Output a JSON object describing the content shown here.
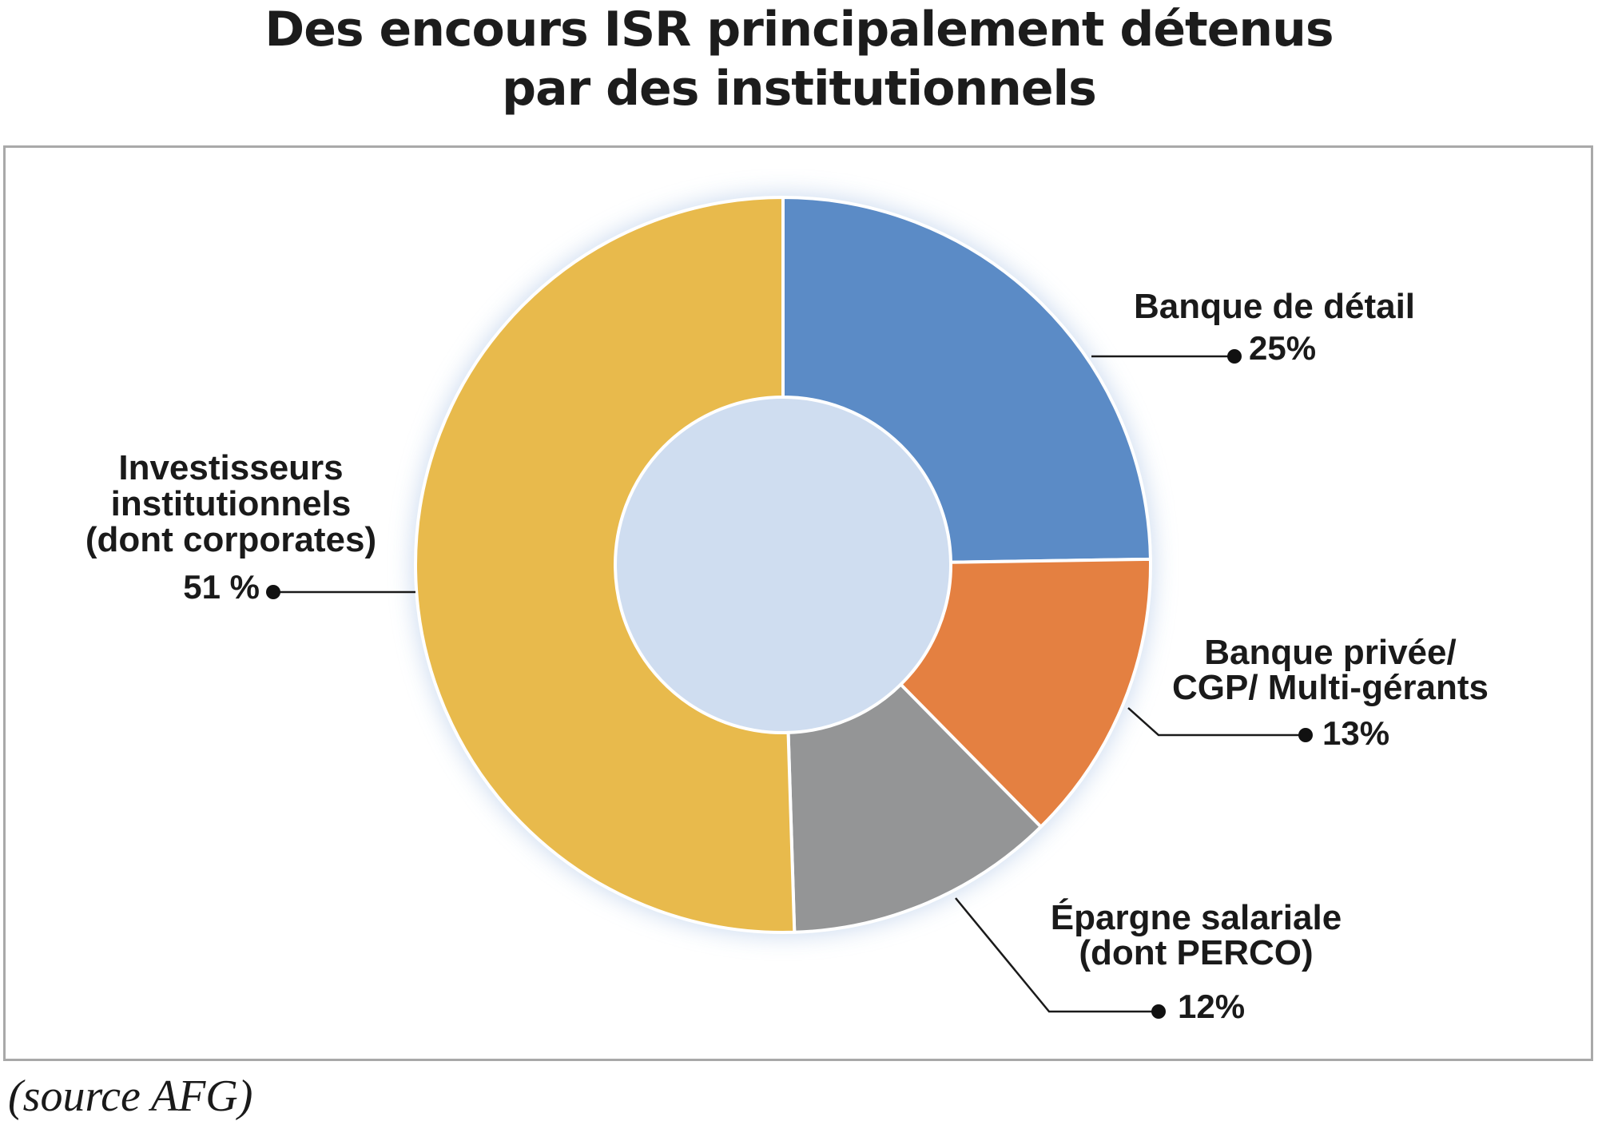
{
  "title_line1": "Des encours ISR principalement détenus",
  "title_line2": "par des institutionnels",
  "source": "(source AFG)",
  "chart_data": {
    "type": "pie",
    "donut": true,
    "legend": "none",
    "slices": [
      {
        "label_lines": [
          "Banque de détail"
        ],
        "value": 25,
        "value_label": "25%",
        "color": "#5b8bc6"
      },
      {
        "label_lines": [
          "Banque privée/",
          "CGP/ Multi-gérants"
        ],
        "value": 13,
        "value_label": "13%",
        "color": "#e48041"
      },
      {
        "label_lines": [
          "Épargne salariale",
          "(dont PERCO)"
        ],
        "value": 12,
        "value_label": "12%",
        "color": "#949596"
      },
      {
        "label_lines": [
          "Investisseurs",
          "institutionnels",
          "(dont corporates)"
        ],
        "value": 51,
        "value_label": "51 %",
        "color": "#e8ba4c"
      }
    ]
  }
}
